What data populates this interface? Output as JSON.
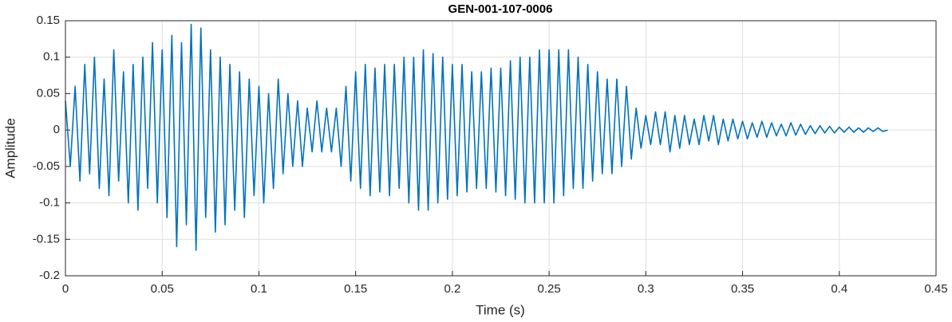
{
  "chart_data": {
    "type": "line",
    "title": "GEN-001-107-0006",
    "x_label": "Time (s)",
    "y_label": "Amplitude",
    "color": "#0072bd",
    "grid": true,
    "xlim": [
      0,
      0.45
    ],
    "ylim": [
      -0.2,
      0.15
    ],
    "xticks": [
      0,
      0.05,
      0.1,
      0.15,
      0.2,
      0.25,
      0.3,
      0.35,
      0.4,
      0.45
    ],
    "yticks": [
      -0.2,
      -0.15,
      -0.1,
      -0.05,
      0,
      0.05,
      0.1,
      0.15
    ],
    "x": [
      0,
      0.0025,
      0.005,
      0.0075,
      0.01,
      0.0125,
      0.015,
      0.0175,
      0.02,
      0.0225,
      0.025,
      0.0275,
      0.03,
      0.0325,
      0.035,
      0.0375,
      0.04,
      0.0425,
      0.045,
      0.0475,
      0.05,
      0.0525,
      0.055,
      0.0575,
      0.06,
      0.0625,
      0.065,
      0.0675,
      0.07,
      0.0725,
      0.075,
      0.0775,
      0.08,
      0.0825,
      0.085,
      0.0875,
      0.09,
      0.0925,
      0.095,
      0.0975,
      0.1,
      0.1025,
      0.105,
      0.1075,
      0.11,
      0.1125,
      0.115,
      0.1175,
      0.12,
      0.1225,
      0.125,
      0.1275,
      0.13,
      0.1325,
      0.135,
      0.1375,
      0.14,
      0.1425,
      0.145,
      0.1475,
      0.15,
      0.1525,
      0.155,
      0.1575,
      0.16,
      0.1625,
      0.165,
      0.1675,
      0.17,
      0.1725,
      0.175,
      0.1775,
      0.18,
      0.1825,
      0.185,
      0.1875,
      0.19,
      0.1925,
      0.195,
      0.1975,
      0.2,
      0.2025,
      0.205,
      0.2075,
      0.21,
      0.2125,
      0.215,
      0.2175,
      0.22,
      0.2225,
      0.225,
      0.2275,
      0.23,
      0.2325,
      0.235,
      0.2375,
      0.24,
      0.2425,
      0.245,
      0.2475,
      0.25,
      0.2525,
      0.255,
      0.2575,
      0.26,
      0.2625,
      0.265,
      0.2675,
      0.27,
      0.2725,
      0.275,
      0.2775,
      0.28,
      0.2825,
      0.285,
      0.2875,
      0.29,
      0.2925,
      0.295,
      0.2975,
      0.3,
      0.3025,
      0.305,
      0.3075,
      0.31,
      0.3125,
      0.315,
      0.3175,
      0.32,
      0.3225,
      0.325,
      0.3275,
      0.33,
      0.3325,
      0.335,
      0.3375,
      0.34,
      0.3425,
      0.345,
      0.3475,
      0.35,
      0.3525,
      0.355,
      0.3575,
      0.36,
      0.3625,
      0.365,
      0.3675,
      0.37,
      0.3725,
      0.375,
      0.3775,
      0.38,
      0.3825,
      0.385,
      0.3875,
      0.39,
      0.3925,
      0.395,
      0.3975,
      0.4,
      0.4025,
      0.405,
      0.4075,
      0.41,
      0.4125,
      0.415,
      0.4175,
      0.42,
      0.4225,
      0.425
    ],
    "values": [
      0.04,
      -0.05,
      0.06,
      -0.07,
      0.09,
      -0.06,
      0.1,
      -0.08,
      0.07,
      -0.09,
      0.11,
      -0.07,
      0.08,
      -0.1,
      0.09,
      -0.11,
      0.1,
      -0.08,
      0.12,
      -0.1,
      0.11,
      -0.12,
      0.13,
      -0.16,
      0.12,
      -0.13,
      0.145,
      -0.165,
      0.14,
      -0.12,
      0.11,
      -0.14,
      0.1,
      -0.13,
      0.09,
      -0.11,
      0.08,
      -0.12,
      0.07,
      -0.09,
      0.06,
      -0.1,
      0.05,
      -0.08,
      0.07,
      -0.06,
      0.05,
      -0.05,
      0.04,
      -0.05,
      0.03,
      -0.03,
      0.04,
      -0.03,
      0.03,
      -0.03,
      0.03,
      -0.05,
      0.06,
      -0.07,
      0.08,
      -0.08,
      0.09,
      -0.09,
      0.085,
      -0.085,
      0.09,
      -0.09,
      0.09,
      -0.08,
      0.1,
      -0.1,
      0.1,
      -0.11,
      0.11,
      -0.11,
      0.105,
      -0.1,
      0.1,
      -0.095,
      0.09,
      -0.09,
      0.09,
      -0.085,
      0.08,
      -0.08,
      0.08,
      -0.08,
      0.085,
      -0.085,
      0.085,
      -0.09,
      0.095,
      -0.095,
      0.1,
      -0.1,
      0.1,
      -0.1,
      0.11,
      -0.1,
      0.11,
      -0.1,
      0.11,
      -0.09,
      0.11,
      -0.08,
      0.1,
      -0.08,
      0.09,
      -0.07,
      0.08,
      -0.06,
      0.07,
      -0.06,
      0.07,
      -0.05,
      0.06,
      -0.04,
      0.03,
      -0.025,
      0.02,
      -0.02,
      0.025,
      -0.02,
      0.025,
      -0.03,
      0.02,
      -0.025,
      0.02,
      -0.02,
      0.015,
      -0.02,
      0.02,
      -0.015,
      0.02,
      -0.02,
      0.015,
      -0.015,
      0.015,
      -0.012,
      0.012,
      -0.012,
      0.01,
      -0.01,
      0.012,
      -0.01,
      0.01,
      -0.008,
      0.008,
      -0.008,
      0.01,
      -0.007,
      0.008,
      -0.006,
      0.006,
      -0.005,
      0.006,
      -0.004,
      0.005,
      -0.004,
      0.004,
      -0.003,
      0.004,
      -0.003,
      0.003,
      -0.003,
      0.003,
      -0.002,
      0.003,
      -0.002,
      0
    ]
  }
}
